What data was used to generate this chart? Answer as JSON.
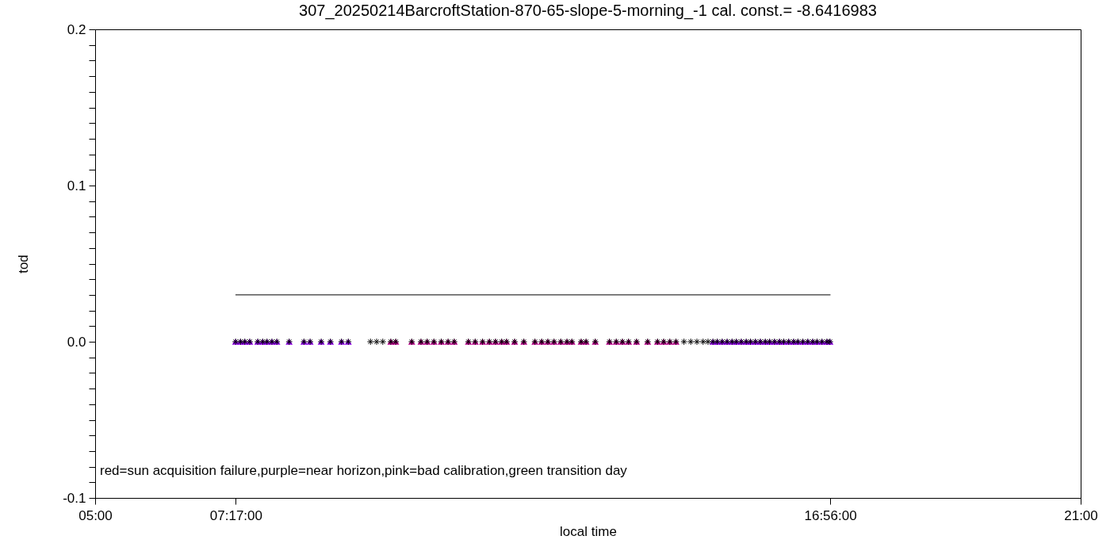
{
  "chart_data": {
    "type": "scatter",
    "title": "307_20250214BarcroftStation-870-65-slope-5-morning_-1 cal. const.= -8.6416983",
    "xlabel": "local time",
    "ylabel": "tod",
    "xlim": [
      5,
      21
    ],
    "ylim": [
      -0.1,
      0.2
    ],
    "xticks": [
      {
        "value": 5,
        "label": "05:00"
      },
      {
        "value": 7.2833,
        "label": "07:17:00"
      },
      {
        "value": 16.9333,
        "label": "16:56:00"
      },
      {
        "value": 21,
        "label": "21:00"
      }
    ],
    "yticks": [
      {
        "value": -0.1,
        "label": "-0.1"
      },
      {
        "value": -0.09,
        "label": null
      },
      {
        "value": -0.08,
        "label": null
      },
      {
        "value": -0.07,
        "label": null
      },
      {
        "value": -0.06,
        "label": null
      },
      {
        "value": -0.05,
        "label": null
      },
      {
        "value": -0.04,
        "label": null
      },
      {
        "value": -0.03,
        "label": null
      },
      {
        "value": -0.02,
        "label": null
      },
      {
        "value": -0.01,
        "label": null
      },
      {
        "value": 0,
        "label": "0.0"
      },
      {
        "value": 0.01,
        "label": null
      },
      {
        "value": 0.02,
        "label": null
      },
      {
        "value": 0.03,
        "label": null
      },
      {
        "value": 0.04,
        "label": null
      },
      {
        "value": 0.05,
        "label": null
      },
      {
        "value": 0.06,
        "label": null
      },
      {
        "value": 0.07,
        "label": null
      },
      {
        "value": 0.08,
        "label": null
      },
      {
        "value": 0.09,
        "label": null
      },
      {
        "value": 0.1,
        "label": "0.1"
      },
      {
        "value": 0.11,
        "label": null
      },
      {
        "value": 0.12,
        "label": null
      },
      {
        "value": 0.13,
        "label": null
      },
      {
        "value": 0.14,
        "label": null
      },
      {
        "value": 0.15,
        "label": null
      },
      {
        "value": 0.16,
        "label": null
      },
      {
        "value": 0.17,
        "label": null
      },
      {
        "value": 0.18,
        "label": null
      },
      {
        "value": 0.19,
        "label": null
      },
      {
        "value": 0.2,
        "label": "0.2"
      }
    ],
    "grid": false,
    "annotations": [
      "red=sun acquisition failure,purple=near horizon,pink=bad calibration,green transition day"
    ],
    "series": [
      {
        "type": "line",
        "color": "#000000",
        "marker": "none",
        "x": [
          7.2833,
          16.9333
        ],
        "values": [
          0.03,
          0.03
        ]
      },
      {
        "color": "#9b00ff",
        "marker": "triangle",
        "x": [
          7.28,
          7.36,
          7.43,
          7.51,
          7.64,
          7.72,
          7.79,
          7.87,
          7.95,
          8.15,
          8.39,
          8.49,
          8.67,
          8.82,
          9.0,
          9.11,
          15.03,
          15.1,
          15.18,
          15.26,
          15.34,
          15.41,
          15.49,
          15.57,
          15.64,
          15.72,
          15.8,
          15.88,
          15.95,
          16.03,
          16.11,
          16.18,
          16.26,
          16.34,
          16.41,
          16.49,
          16.57,
          16.65,
          16.72,
          16.8,
          16.88,
          16.93
        ],
        "values": [
          0,
          0,
          0,
          0,
          0,
          0,
          0,
          0,
          0,
          0,
          0,
          0,
          0,
          0,
          0,
          0,
          0,
          0,
          0,
          0,
          0,
          0,
          0,
          0,
          0,
          0,
          0,
          0,
          0,
          0,
          0,
          0,
          0,
          0,
          0,
          0,
          0,
          0,
          0,
          0,
          0,
          0
        ]
      },
      {
        "color": "#cc0099",
        "marker": "triangle",
        "x": [
          9.8,
          9.88,
          10.14,
          10.29,
          10.39,
          10.5,
          10.62,
          10.73,
          10.83,
          11.06,
          11.17,
          11.29,
          11.4,
          11.5,
          11.6,
          11.68,
          11.81,
          11.96,
          12.14,
          12.25,
          12.35,
          12.45,
          12.56,
          12.66,
          12.74,
          12.89,
          12.97,
          13.12,
          13.35,
          13.46,
          13.56,
          13.66,
          13.79,
          13.97,
          14.13,
          14.23,
          14.33,
          14.43
        ],
        "values": [
          0,
          0,
          0,
          0,
          0,
          0,
          0,
          0,
          0,
          0,
          0,
          0,
          0,
          0,
          0,
          0,
          0,
          0,
          0,
          0,
          0,
          0,
          0,
          0,
          0,
          0,
          0,
          0,
          0,
          0,
          0,
          0,
          0,
          0,
          0,
          0,
          0,
          0
        ]
      },
      {
        "color": "#000000",
        "marker": "cross",
        "x": [
          7.28,
          7.36,
          7.43,
          7.51,
          7.64,
          7.72,
          7.79,
          7.87,
          7.95,
          8.15,
          8.39,
          8.49,
          8.67,
          8.82,
          9.0,
          9.11,
          9.47,
          9.57,
          9.67,
          9.8,
          9.88,
          10.14,
          10.29,
          10.39,
          10.5,
          10.62,
          10.73,
          10.83,
          11.06,
          11.17,
          11.29,
          11.4,
          11.5,
          11.6,
          11.68,
          11.81,
          11.96,
          12.14,
          12.25,
          12.35,
          12.45,
          12.56,
          12.66,
          12.74,
          12.89,
          12.97,
          13.12,
          13.35,
          13.46,
          13.56,
          13.66,
          13.79,
          13.97,
          14.13,
          14.23,
          14.33,
          14.43,
          14.56,
          14.67,
          14.77,
          14.87,
          14.95,
          15.03,
          15.1,
          15.18,
          15.26,
          15.34,
          15.41,
          15.49,
          15.57,
          15.64,
          15.72,
          15.8,
          15.88,
          15.95,
          16.03,
          16.11,
          16.18,
          16.26,
          16.34,
          16.41,
          16.49,
          16.57,
          16.65,
          16.72,
          16.8,
          16.88,
          16.93
        ],
        "values": [
          0,
          0,
          0,
          0,
          0,
          0,
          0,
          0,
          0,
          0,
          0,
          0,
          0,
          0,
          0,
          0,
          0,
          0,
          0,
          0,
          0,
          0,
          0,
          0,
          0,
          0,
          0,
          0,
          0,
          0,
          0,
          0,
          0,
          0,
          0,
          0,
          0,
          0,
          0,
          0,
          0,
          0,
          0,
          0,
          0,
          0,
          0,
          0,
          0,
          0,
          0,
          0,
          0,
          0,
          0,
          0,
          0,
          0,
          0,
          0,
          0,
          0,
          0,
          0,
          0,
          0,
          0,
          0,
          0,
          0,
          0,
          0,
          0,
          0,
          0,
          0,
          0,
          0,
          0,
          0,
          0,
          0,
          0,
          0,
          0,
          0,
          0,
          0
        ]
      }
    ]
  }
}
